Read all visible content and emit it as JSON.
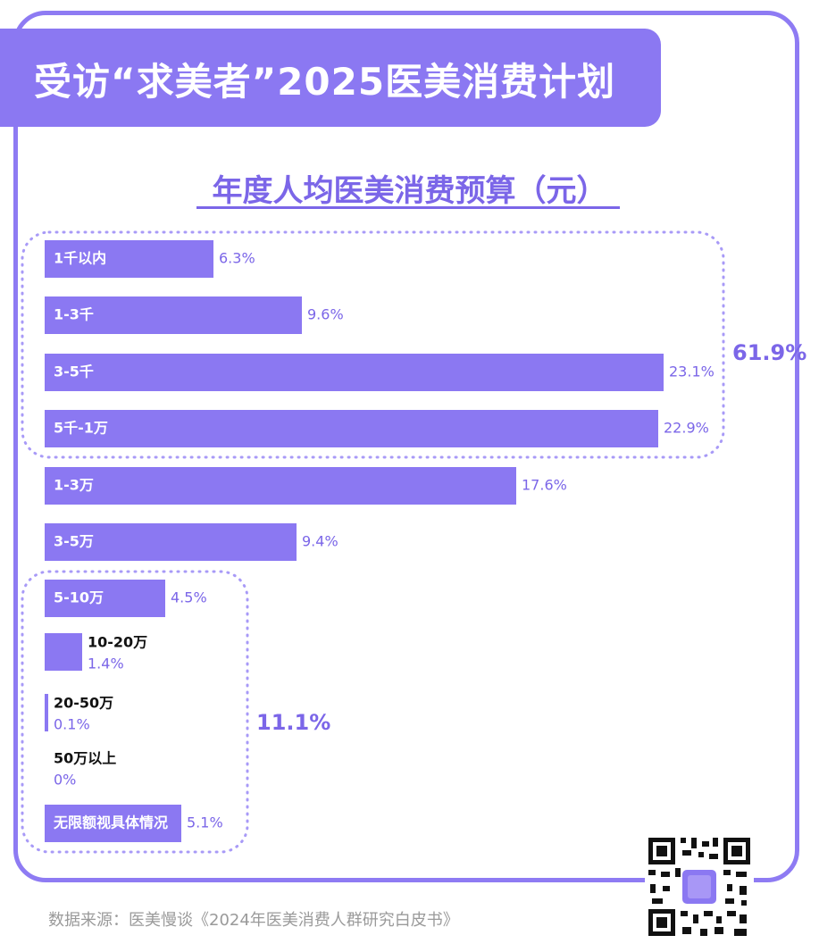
{
  "header": {
    "title": "受访“求美者”2025医美消费计划"
  },
  "footer": {
    "source": "数据来源：医美慢谈《2024年医美消费人群研究白皮书》"
  },
  "colors": {
    "bar": "#8b78f2",
    "accent": "#7b66e8",
    "dotted": "#a89af7",
    "frame": "#8e7bf3"
  },
  "chart_data": {
    "type": "bar",
    "orientation": "horizontal",
    "title": "年度人均医美消费预算（元）",
    "categories": [
      "1千以内",
      "1-3千",
      "3-5千",
      "5千-1万",
      "1-3万",
      "3-5万",
      "5-10万",
      "10-20万",
      "20-50万",
      "50万以上",
      "无限额视具体情况"
    ],
    "values": [
      6.3,
      9.6,
      23.1,
      22.9,
      17.6,
      9.4,
      4.5,
      1.4,
      0.1,
      0,
      5.1
    ],
    "value_labels": [
      "6.3%",
      "9.6%",
      "23.1%",
      "22.9%",
      "17.6%",
      "9.4%",
      "4.5%",
      "1.4%",
      "0.1%",
      "0%",
      "5.1%"
    ],
    "unit": "%",
    "groups": [
      {
        "label": "61.9%",
        "value": 61.9,
        "members": [
          "1千以内",
          "1-3千",
          "3-5千",
          "5千-1万"
        ]
      },
      {
        "label": "11.1%",
        "value": 11.1,
        "members": [
          "5-10万",
          "10-20万",
          "20-50万",
          "50万以上",
          "无限额视具体情况"
        ]
      }
    ]
  }
}
